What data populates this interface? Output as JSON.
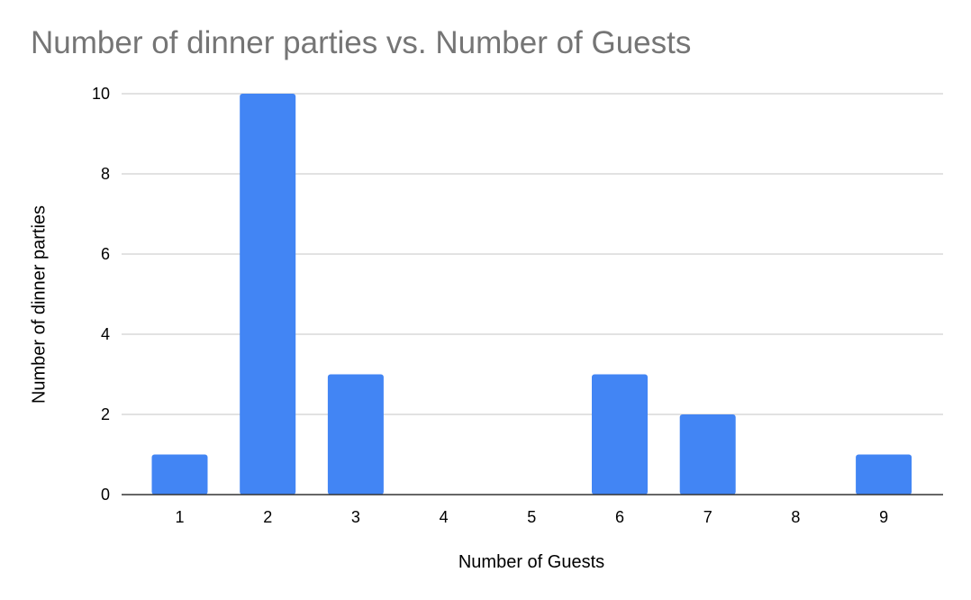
{
  "chart_data": {
    "type": "bar",
    "title": "Number of dinner parties vs. Number of Guests",
    "xlabel": "Number of Guests",
    "ylabel": "Number of dinner parties",
    "categories": [
      "1",
      "2",
      "3",
      "4",
      "5",
      "6",
      "7",
      "8",
      "9"
    ],
    "values": [
      1,
      10,
      3,
      0,
      0,
      3,
      2,
      0,
      1
    ],
    "ylim": [
      0,
      10
    ],
    "yticks": [
      "0",
      "2",
      "4",
      "6",
      "8",
      "10"
    ],
    "grid": true,
    "legend": "none",
    "colors": {
      "bar": "#4285f4",
      "grid": "#d9d9d9",
      "axis": "#333333",
      "title": "#757575"
    }
  }
}
